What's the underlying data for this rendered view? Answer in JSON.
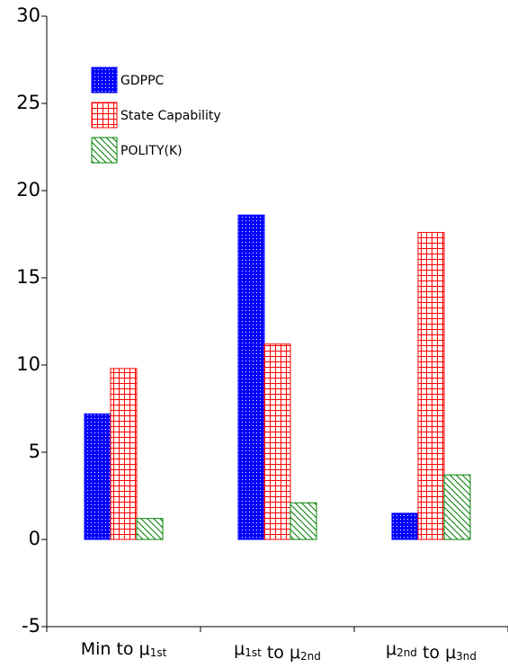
{
  "chart_data": {
    "type": "bar",
    "categories": [
      "Min to μ1st",
      "μ1st to μ2nd",
      "μ2nd to μ3nd"
    ],
    "series": [
      {
        "name": "GDPPC",
        "color": "#0000ff",
        "pattern": "dots",
        "values": [
          7.2,
          18.6,
          1.5
        ]
      },
      {
        "name": "State Capability",
        "color": "#ff0000",
        "pattern": "grid",
        "values": [
          9.8,
          11.2,
          17.6
        ]
      },
      {
        "name": "POLITY(K)",
        "color": "#008000",
        "pattern": "hatch",
        "values": [
          1.2,
          2.1,
          3.7
        ]
      }
    ],
    "ylim": [
      -5,
      30
    ],
    "yticks": [
      -5,
      0,
      5,
      10,
      15,
      20,
      25,
      30
    ],
    "legend": "upper left"
  }
}
